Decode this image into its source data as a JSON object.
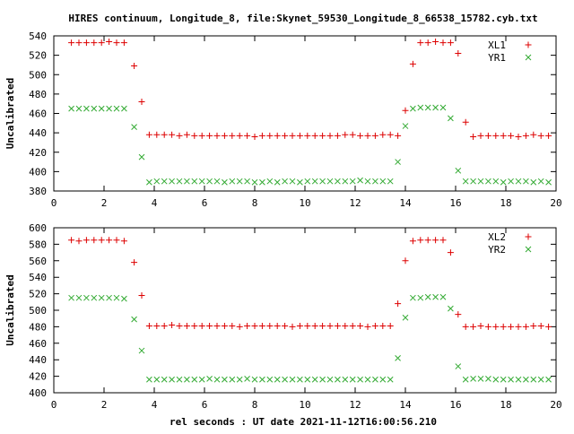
{
  "title": "HIRES continuum, Longitude_8, file:Skynet_59530_Longitude_8_66538_15782.cyb.txt",
  "xlabel": "rel seconds : UT date 2021-11-12T16:00:56.210",
  "colors": {
    "red": "#dd0000",
    "green": "#33aa33",
    "axis": "#000000"
  },
  "chart_data": [
    {
      "type": "scatter",
      "ylabel": "Uncalibrated",
      "xlim": [
        0,
        20
      ],
      "ylim": [
        380,
        540
      ],
      "xticks": [
        0,
        2,
        4,
        6,
        8,
        10,
        12,
        14,
        16,
        18,
        20
      ],
      "yticks": [
        380,
        400,
        420,
        440,
        460,
        480,
        500,
        520,
        540
      ],
      "grid": false,
      "legend": "top-right",
      "x": [
        0.7,
        1.0,
        1.3,
        1.6,
        1.9,
        2.2,
        2.5,
        2.8,
        3.2,
        3.5,
        3.8,
        4.1,
        4.4,
        4.7,
        5.0,
        5.3,
        5.6,
        5.9,
        6.2,
        6.5,
        6.8,
        7.1,
        7.4,
        7.7,
        8.0,
        8.3,
        8.6,
        8.9,
        9.2,
        9.5,
        9.8,
        10.1,
        10.4,
        10.7,
        11.0,
        11.3,
        11.6,
        11.9,
        12.2,
        12.5,
        12.8,
        13.1,
        13.4,
        13.7,
        14.0,
        14.3,
        14.6,
        14.9,
        15.2,
        15.5,
        15.8,
        16.1,
        16.4,
        16.7,
        17.0,
        17.3,
        17.6,
        17.9,
        18.2,
        18.5,
        18.8,
        19.1,
        19.4,
        19.7
      ],
      "series": [
        {
          "name": "XL1",
          "marker": "+",
          "color": "red",
          "values": [
            533,
            533,
            533,
            533,
            533,
            534,
            533,
            533,
            509,
            472,
            438,
            438,
            438,
            438,
            437,
            438,
            437,
            437,
            437,
            437,
            437,
            437,
            437,
            437,
            436,
            437,
            437,
            437,
            437,
            437,
            437,
            437,
            437,
            437,
            437,
            437,
            438,
            438,
            437,
            437,
            437,
            438,
            438,
            437,
            463,
            511,
            533,
            533,
            534,
            533,
            533,
            522,
            451,
            436,
            437,
            437,
            437,
            437,
            437,
            436,
            437,
            438,
            437,
            437
          ]
        },
        {
          "name": "YR1",
          "marker": "x",
          "color": "green",
          "values": [
            465,
            465,
            465,
            465,
            465,
            465,
            465,
            465,
            446,
            415,
            389,
            390,
            390,
            390,
            390,
            390,
            390,
            390,
            390,
            390,
            389,
            390,
            390,
            390,
            389,
            389,
            390,
            389,
            390,
            390,
            389,
            390,
            390,
            390,
            390,
            390,
            390,
            390,
            391,
            390,
            390,
            390,
            390,
            410,
            447,
            465,
            466,
            466,
            466,
            466,
            455,
            401,
            390,
            390,
            390,
            390,
            390,
            389,
            390,
            390,
            390,
            389,
            390,
            389
          ]
        }
      ]
    },
    {
      "type": "scatter",
      "ylabel": "Uncalibrated",
      "xlim": [
        0,
        20
      ],
      "ylim": [
        400,
        600
      ],
      "xticks": [
        0,
        2,
        4,
        6,
        8,
        10,
        12,
        14,
        16,
        18,
        20
      ],
      "yticks": [
        400,
        420,
        440,
        460,
        480,
        500,
        520,
        540,
        560,
        580,
        600
      ],
      "grid": false,
      "legend": "top-right",
      "x": [
        0.7,
        1.0,
        1.3,
        1.6,
        1.9,
        2.2,
        2.5,
        2.8,
        3.2,
        3.5,
        3.8,
        4.1,
        4.4,
        4.7,
        5.0,
        5.3,
        5.6,
        5.9,
        6.2,
        6.5,
        6.8,
        7.1,
        7.4,
        7.7,
        8.0,
        8.3,
        8.6,
        8.9,
        9.2,
        9.5,
        9.8,
        10.1,
        10.4,
        10.7,
        11.0,
        11.3,
        11.6,
        11.9,
        12.2,
        12.5,
        12.8,
        13.1,
        13.4,
        13.7,
        14.0,
        14.3,
        14.6,
        14.9,
        15.2,
        15.5,
        15.8,
        16.1,
        16.4,
        16.7,
        17.0,
        17.3,
        17.6,
        17.9,
        18.2,
        18.5,
        18.8,
        19.1,
        19.4,
        19.7
      ],
      "series": [
        {
          "name": "XL2",
          "marker": "+",
          "color": "red",
          "values": [
            585,
            584,
            585,
            585,
            585,
            585,
            585,
            584,
            558,
            518,
            481,
            481,
            481,
            482,
            481,
            481,
            481,
            481,
            481,
            481,
            481,
            481,
            480,
            481,
            481,
            481,
            481,
            481,
            481,
            480,
            481,
            481,
            481,
            481,
            481,
            481,
            481,
            481,
            481,
            480,
            481,
            481,
            481,
            508,
            560,
            584,
            585,
            585,
            585,
            585,
            570,
            495,
            480,
            480,
            481,
            480,
            480,
            480,
            480,
            480,
            480,
            481,
            481,
            480
          ]
        },
        {
          "name": "YR2",
          "marker": "x",
          "color": "green",
          "values": [
            515,
            515,
            515,
            515,
            515,
            515,
            515,
            514,
            489,
            451,
            416,
            416,
            416,
            416,
            416,
            416,
            416,
            416,
            417,
            416,
            416,
            416,
            416,
            417,
            416,
            416,
            416,
            416,
            416,
            416,
            416,
            416,
            416,
            416,
            416,
            416,
            416,
            416,
            416,
            416,
            416,
            416,
            416,
            442,
            491,
            515,
            515,
            516,
            516,
            516,
            502,
            432,
            416,
            417,
            417,
            417,
            416,
            416,
            416,
            416,
            416,
            416,
            416,
            416
          ]
        }
      ]
    }
  ]
}
